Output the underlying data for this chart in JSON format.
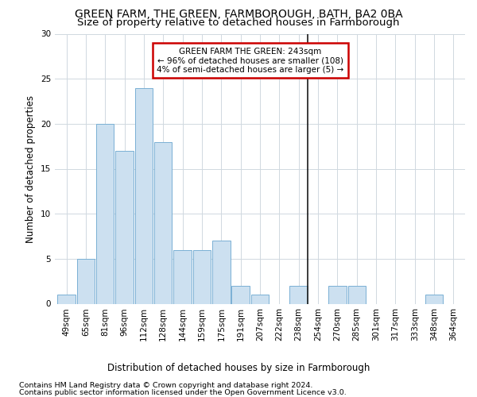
{
  "title1": "GREEN FARM, THE GREEN, FARMBOROUGH, BATH, BA2 0BA",
  "title2": "Size of property relative to detached houses in Farmborough",
  "xlabel": "Distribution of detached houses by size in Farmborough",
  "ylabel": "Number of detached properties",
  "footnote1": "Contains HM Land Registry data © Crown copyright and database right 2024.",
  "footnote2": "Contains public sector information licensed under the Open Government Licence v3.0.",
  "categories": [
    "49sqm",
    "65sqm",
    "81sqm",
    "96sqm",
    "112sqm",
    "128sqm",
    "144sqm",
    "159sqm",
    "175sqm",
    "191sqm",
    "207sqm",
    "222sqm",
    "238sqm",
    "254sqm",
    "270sqm",
    "285sqm",
    "301sqm",
    "317sqm",
    "333sqm",
    "348sqm",
    "364sqm"
  ],
  "values": [
    1,
    5,
    20,
    17,
    24,
    18,
    6,
    6,
    7,
    2,
    1,
    0,
    2,
    0,
    2,
    2,
    0,
    0,
    0,
    1,
    0
  ],
  "bar_color": "#cce0f0",
  "bar_edge_color": "#7ab0d4",
  "grid_color": "#d0d8e0",
  "marker_bin_index": 12,
  "annotation_title": "GREEN FARM THE GREEN: 243sqm",
  "annotation_line1": "← 96% of detached houses are smaller (108)",
  "annotation_line2": "4% of semi-detached houses are larger (5) →",
  "annotation_box_color": "#ffffff",
  "annotation_box_edge_color": "#cc0000",
  "vline_color": "#1a1a1a",
  "ylim": [
    0,
    30
  ],
  "yticks": [
    0,
    5,
    10,
    15,
    20,
    25,
    30
  ],
  "background_color": "#ffffff",
  "title_fontsize": 10,
  "subtitle_fontsize": 9.5,
  "axis_label_fontsize": 8.5,
  "tick_fontsize": 7.5,
  "annotation_fontsize": 7.5,
  "footnote_fontsize": 6.8
}
